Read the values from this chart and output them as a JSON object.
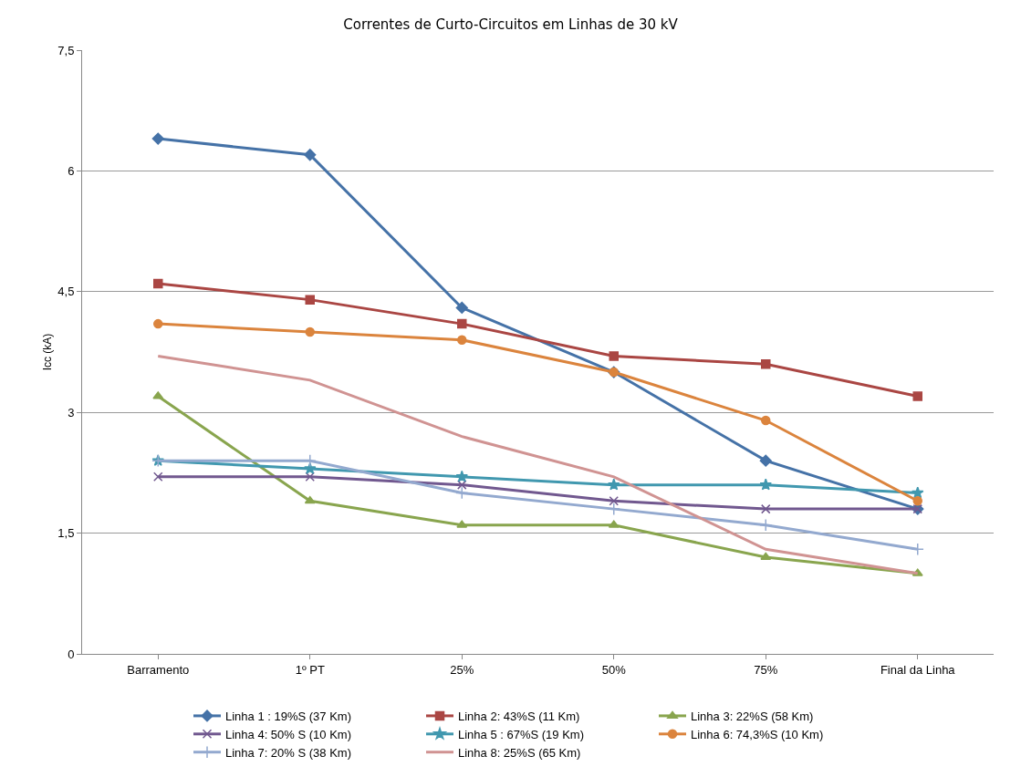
{
  "chart_data": {
    "type": "line",
    "title": "Correntes de Curto-Circuitos em Linhas de 30 kV",
    "ylabel": "Icc (kA)",
    "categories": [
      "Barramento",
      "1º PT",
      "25%",
      "50%",
      "75%",
      "Final da Linha"
    ],
    "ylim": [
      0,
      7.5
    ],
    "yticks": [
      0,
      {
        "value": 1.5,
        "label": "1,5"
      },
      3,
      {
        "value": 4.5,
        "label": "4,5"
      },
      6,
      {
        "value": 7.5,
        "label": "7,5"
      }
    ],
    "grid": "y",
    "legend": "bottom",
    "series": [
      {
        "name": "Linha 1 : 19%S (37 Km)",
        "color": "#4572a7",
        "marker": "diamond",
        "values": [
          6.4,
          6.2,
          4.3,
          3.5,
          2.4,
          1.8
        ]
      },
      {
        "name": "Linha 2: 43%S (11 Km)",
        "color": "#aa4643",
        "marker": "square",
        "values": [
          4.6,
          4.4,
          4.1,
          3.7,
          3.6,
          3.2
        ]
      },
      {
        "name": "Linha 3: 22%S (58 Km)",
        "color": "#89a54e",
        "marker": "triangle",
        "values": [
          3.2,
          1.9,
          1.6,
          1.6,
          1.2,
          1.0
        ]
      },
      {
        "name": "Linha 4: 50% S (10 Km)",
        "color": "#71588f",
        "marker": "x",
        "values": [
          2.2,
          2.2,
          2.1,
          1.9,
          1.8,
          1.8
        ]
      },
      {
        "name": "Linha 5 : 67%S (19 Km)",
        "color": "#4198af",
        "marker": "star",
        "values": [
          2.4,
          2.3,
          2.2,
          2.1,
          2.1,
          2.0
        ]
      },
      {
        "name": "Linha 6: 74,3%S (10 Km)",
        "color": "#db843d",
        "marker": "circle",
        "values": [
          4.1,
          4.0,
          3.9,
          3.5,
          2.9,
          1.9
        ]
      },
      {
        "name": "Linha 7: 20% S (38 Km)",
        "color": "#93a9cf",
        "marker": "cross",
        "values": [
          2.4,
          2.4,
          2.0,
          1.8,
          1.6,
          1.3
        ]
      },
      {
        "name": "Linha 8: 25%S (65 Km)",
        "color": "#d09392",
        "marker": "none",
        "values": [
          3.7,
          3.4,
          2.7,
          2.2,
          1.3,
          1.0
        ]
      }
    ]
  }
}
